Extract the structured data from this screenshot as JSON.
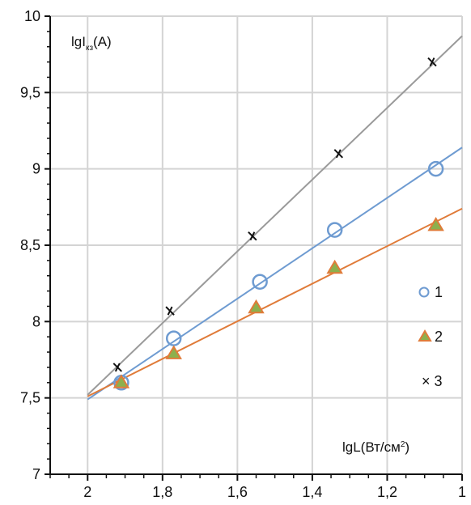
{
  "chart_data": {
    "type": "scatter",
    "title": "",
    "ylabel": "lgI",
    "ylabel_sub": "кз",
    "ylabel_tail": "(A)",
    "xlabel": "lgL(Вт/см",
    "xlabel_sup": "2",
    "xlabel_tail": ")",
    "xlim": [
      2.1,
      1.0
    ],
    "ylim": [
      7,
      10
    ],
    "x_ticks": [
      2,
      1.8,
      1.6,
      1.4,
      1.2,
      1
    ],
    "x_tick_labels": [
      "2",
      "1,8",
      "1,6",
      "1,4",
      "1,2",
      "1"
    ],
    "y_ticks": [
      7,
      7.5,
      8,
      8.5,
      9,
      9.5,
      10
    ],
    "y_tick_labels": [
      "7",
      "7,5",
      "8",
      "8,5",
      "9",
      "9,5",
      "10"
    ],
    "grid": true,
    "legend_position": "right",
    "series": [
      {
        "name": "1",
        "marker": "circle",
        "color": "#6e9bd1",
        "points": [
          [
            1.91,
            7.6
          ],
          [
            1.77,
            7.89
          ],
          [
            1.54,
            8.26
          ],
          [
            1.34,
            8.6
          ],
          [
            1.07,
            9.0
          ]
        ],
        "fit": [
          [
            2.0,
            7.49
          ],
          [
            1.0,
            9.14
          ]
        ]
      },
      {
        "name": "2",
        "marker": "triangle",
        "color": "#e07b39",
        "fill": "#8db04d",
        "points": [
          [
            1.91,
            7.6
          ],
          [
            1.77,
            7.79
          ],
          [
            1.55,
            8.09
          ],
          [
            1.34,
            8.35
          ],
          [
            1.07,
            8.63
          ]
        ],
        "fit": [
          [
            2.0,
            7.51
          ],
          [
            1.0,
            8.74
          ]
        ]
      },
      {
        "name": "3",
        "marker": "cross",
        "color": "#111111",
        "line_color": "#9a9a9a",
        "points": [
          [
            1.92,
            7.7
          ],
          [
            1.78,
            8.07
          ],
          [
            1.56,
            8.56
          ],
          [
            1.33,
            9.1
          ],
          [
            1.08,
            9.7
          ]
        ],
        "fit": [
          [
            2.0,
            7.52
          ],
          [
            1.0,
            9.87
          ]
        ]
      }
    ],
    "legend": [
      {
        "label": "1",
        "marker": "circle"
      },
      {
        "label": "2",
        "marker": "triangle"
      },
      {
        "label": "× 3",
        "marker": "none"
      }
    ]
  }
}
